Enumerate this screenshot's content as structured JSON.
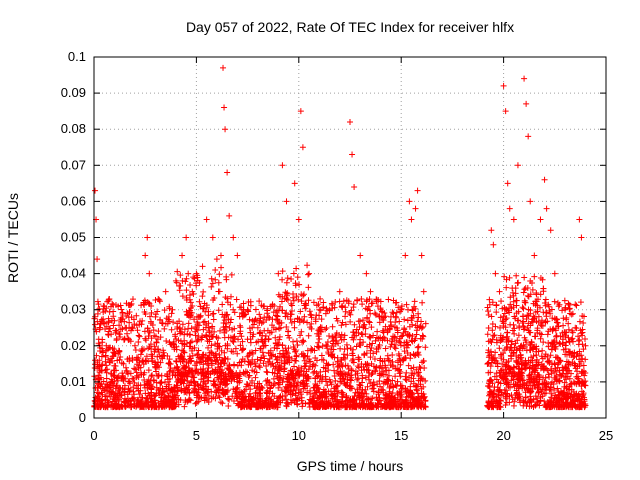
{
  "chart_data": {
    "type": "scatter",
    "title": "Day 057 of 2022, Rate Of TEC Index for receiver hlfx",
    "xlabel": "GPS time / hours",
    "ylabel": "ROTI / TECUs",
    "xlim": [
      0,
      25
    ],
    "ylim": [
      0,
      0.1
    ],
    "xticks": [
      0,
      5,
      10,
      15,
      20,
      25
    ],
    "yticks": [
      0,
      0.01,
      0.02,
      0.03,
      0.04,
      0.05,
      0.06,
      0.07,
      0.08,
      0.09,
      0.1
    ],
    "xtick_labels": [
      "0",
      "5",
      "10",
      "15",
      "20",
      "25"
    ],
    "ytick_labels": [
      "0",
      "0.01",
      "0.02",
      "0.03",
      "0.04",
      "0.05",
      "0.06",
      "0.07",
      "0.08",
      "0.09",
      "0.1"
    ],
    "grid": true,
    "marker": "+",
    "color": "#ff0000",
    "data_gap_hours": [
      16.2,
      19.2
    ],
    "series": [
      {
        "x": [
          0.05,
          0.1,
          0.15,
          0.2,
          0.3,
          0.6,
          1.0,
          1.5,
          2.0,
          2.5,
          2.6,
          2.7,
          3.0,
          3.5,
          4.0,
          4.3,
          4.5,
          4.6,
          4.8,
          5.0,
          5.3,
          5.5,
          5.8,
          6.0,
          6.2,
          6.3,
          6.35,
          6.4,
          6.5,
          6.6,
          6.8,
          7.0,
          7.5,
          8.0,
          8.5,
          9.0,
          9.2,
          9.4,
          9.8,
          10.0,
          10.1,
          10.2,
          10.5,
          11.0,
          11.5,
          12.0,
          12.5,
          12.6,
          12.7,
          13.0,
          13.3,
          13.5,
          14.0,
          14.5,
          15.0,
          15.2,
          15.4,
          15.5,
          15.7,
          15.8,
          16.0,
          16.1,
          19.4,
          19.5,
          19.6,
          19.8,
          20.0,
          20.1,
          20.2,
          20.3,
          20.5,
          20.7,
          21.0,
          21.1,
          21.2,
          21.3,
          21.5,
          21.8,
          22.0,
          22.1,
          22.3,
          22.5,
          23.0,
          23.5,
          23.7,
          23.8,
          24.0
        ],
        "y": [
          0.063,
          0.055,
          0.044,
          0.03,
          0.025,
          0.02,
          0.018,
          0.022,
          0.02,
          0.045,
          0.05,
          0.04,
          0.028,
          0.035,
          0.038,
          0.045,
          0.05,
          0.04,
          0.035,
          0.04,
          0.042,
          0.055,
          0.05,
          0.044,
          0.045,
          0.097,
          0.086,
          0.08,
          0.068,
          0.056,
          0.05,
          0.045,
          0.03,
          0.025,
          0.028,
          0.04,
          0.07,
          0.06,
          0.065,
          0.055,
          0.085,
          0.075,
          0.04,
          0.03,
          0.03,
          0.035,
          0.082,
          0.073,
          0.064,
          0.045,
          0.04,
          0.035,
          0.03,
          0.028,
          0.03,
          0.045,
          0.06,
          0.055,
          0.058,
          0.063,
          0.045,
          0.035,
          0.052,
          0.048,
          0.04,
          0.035,
          0.092,
          0.085,
          0.065,
          0.058,
          0.055,
          0.07,
          0.094,
          0.087,
          0.078,
          0.06,
          0.045,
          0.055,
          0.066,
          0.058,
          0.052,
          0.04,
          0.03,
          0.025,
          0.055,
          0.05,
          0.02
        ]
      }
    ]
  }
}
